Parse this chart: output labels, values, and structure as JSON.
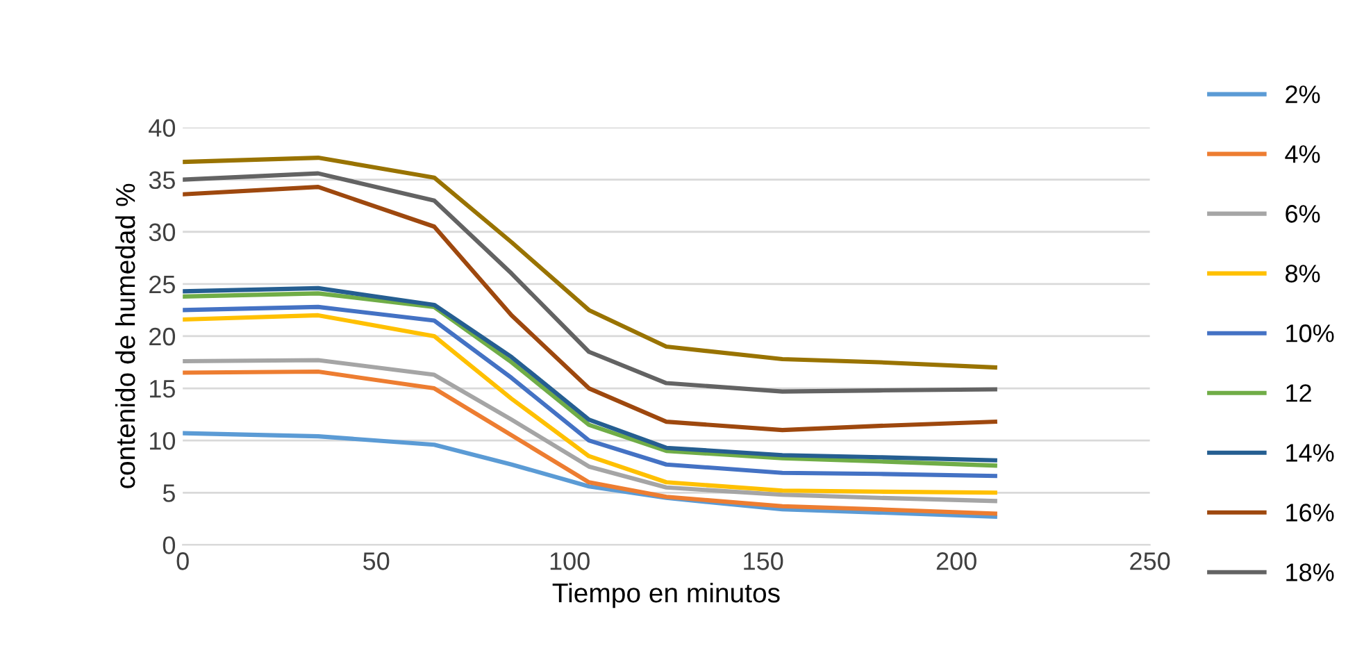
{
  "chart_data": {
    "type": "line",
    "xlabel": "Tiempo en minutos",
    "ylabel": "contenido de humedad %",
    "x": [
      0,
      35,
      65,
      85,
      105,
      125,
      155,
      180,
      210
    ],
    "xlim": [
      0,
      250
    ],
    "xticks": [
      0,
      50,
      100,
      150,
      200,
      250
    ],
    "ylim": [
      0,
      40
    ],
    "yticks": [
      0,
      5,
      10,
      15,
      20,
      25,
      30,
      35,
      40
    ],
    "grid": "y",
    "legend": "right",
    "marker": "none",
    "line_style": "solid",
    "series": [
      {
        "name": "2%",
        "color": "#5b9bd5",
        "values": [
          10.7,
          10.4,
          9.6,
          7.7,
          5.6,
          4.5,
          3.4,
          3.1,
          2.7
        ]
      },
      {
        "name": "4%",
        "color": "#ed7d31",
        "values": [
          16.5,
          16.6,
          15,
          10.5,
          6,
          4.6,
          3.7,
          3.4,
          3.0
        ]
      },
      {
        "name": "6%",
        "color": "#a5a5a5",
        "values": [
          17.6,
          17.7,
          16.3,
          12,
          7.5,
          5.5,
          4.8,
          4.5,
          4.2
        ]
      },
      {
        "name": "8%",
        "color": "#ffc000",
        "values": [
          21.6,
          22,
          20,
          14,
          8.5,
          6,
          5.2,
          5.1,
          5.0
        ]
      },
      {
        "name": "10%",
        "color": "#4472c4",
        "values": [
          22.5,
          22.8,
          21.5,
          16,
          10,
          7.7,
          6.9,
          6.8,
          6.6
        ]
      },
      {
        "name": "12",
        "color": "#70ad47",
        "values": [
          23.8,
          24.1,
          22.8,
          17.5,
          11.5,
          9,
          8.3,
          8,
          7.6
        ]
      },
      {
        "name": "14%",
        "color": "#255e91",
        "values": [
          24.3,
          24.6,
          23,
          18,
          12,
          9.3,
          8.6,
          8.4,
          8.1
        ]
      },
      {
        "name": "16%",
        "color": "#9e480e",
        "values": [
          33.6,
          34.3,
          30.5,
          22,
          15,
          11.8,
          11,
          11.4,
          11.8
        ]
      },
      {
        "name": "18%",
        "color": "#636363",
        "values": [
          35,
          35.6,
          33,
          26,
          18.5,
          15.5,
          14.7,
          14.8,
          14.9
        ]
      },
      {
        "color": "#997300",
        "values": [
          36.7,
          37.1,
          35.2,
          29,
          22.5,
          19,
          17.8,
          17.5,
          17.0
        ]
      }
    ]
  }
}
